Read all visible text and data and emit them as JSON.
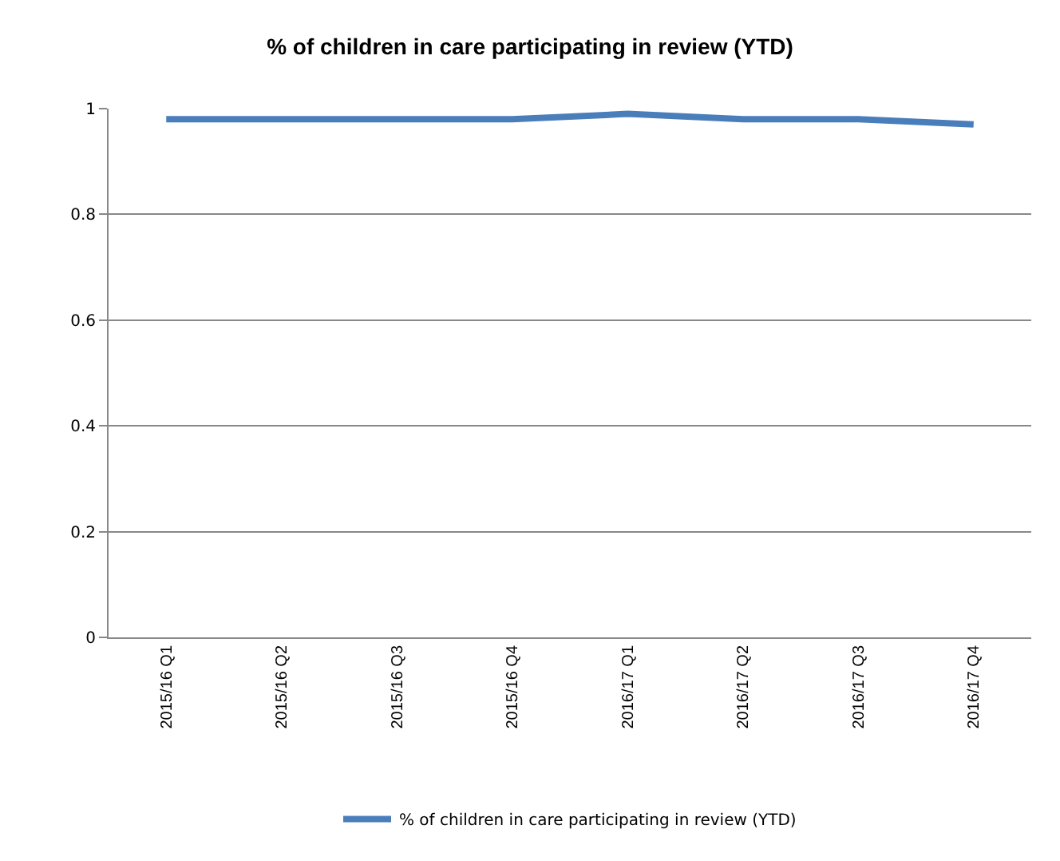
{
  "chart_data": {
    "type": "line",
    "title": "% of children in care participating in review (YTD)",
    "categories": [
      "2015/16 Q1",
      "2015/16 Q2",
      "2015/16 Q3",
      "2015/16 Q4",
      "2016/17 Q1",
      "2016/17 Q2",
      "2016/17 Q3",
      "2016/17 Q4"
    ],
    "series": [
      {
        "name": "% of children in care participating in review (YTD)",
        "color": "#4a7ebb",
        "values": [
          0.98,
          0.98,
          0.98,
          0.98,
          0.99,
          0.98,
          0.98,
          0.97
        ]
      }
    ],
    "ylim": [
      0,
      1
    ],
    "yticks": [
      0,
      0.2,
      0.4,
      0.6,
      0.8,
      1
    ],
    "grid": "y",
    "legend": "bottom",
    "marker": "none",
    "line_style": "solid"
  }
}
